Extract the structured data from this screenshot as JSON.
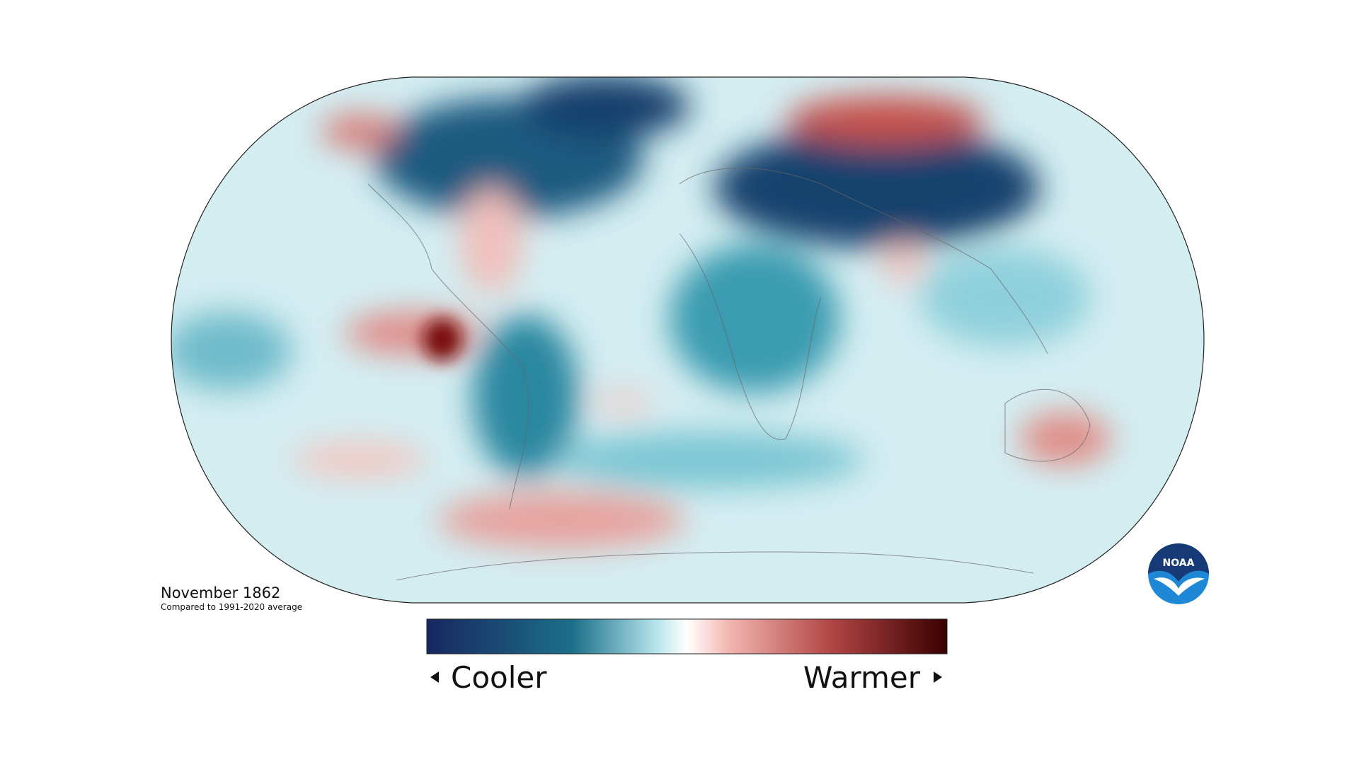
{
  "title": "November 1862",
  "subtitle": "Compared to 1991-2020 average",
  "legend": {
    "low": "Cooler",
    "high": "Warmer"
  },
  "logo": "NOAA"
}
